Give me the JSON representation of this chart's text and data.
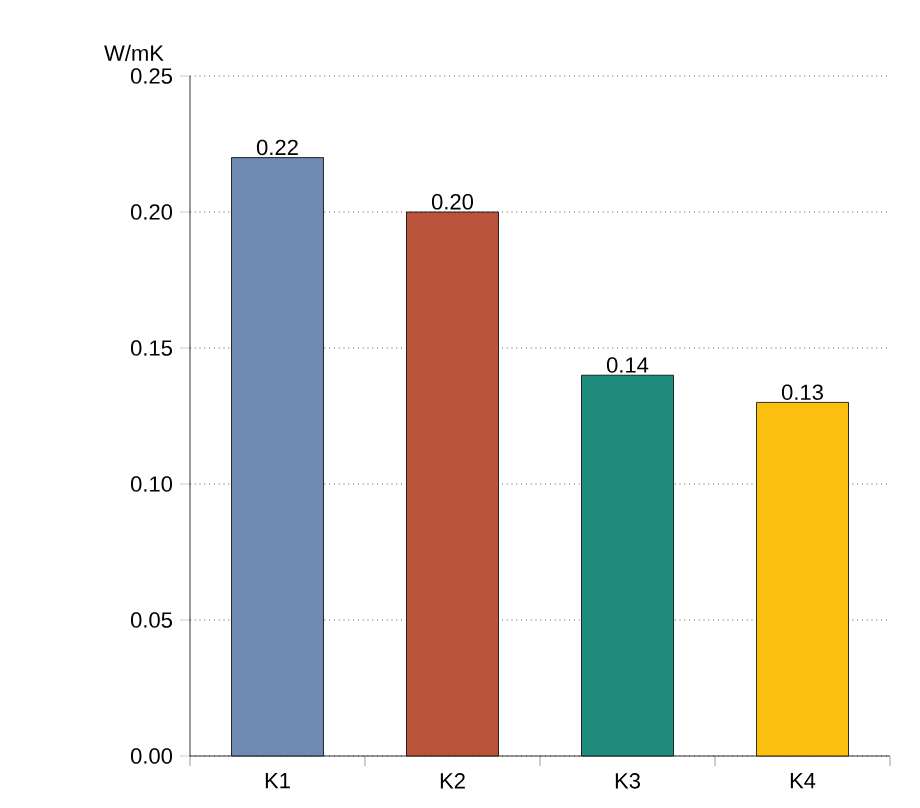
{
  "chart_data": {
    "type": "bar",
    "ylabel": "W/mK",
    "categories": [
      "K1",
      "K2",
      "K3",
      "K4"
    ],
    "values": [
      0.22,
      0.2,
      0.14,
      0.13
    ],
    "value_labels": [
      "0.22",
      "0.20",
      "0.14",
      "0.13"
    ],
    "colors": [
      "#6f8ab3",
      "#b9533a",
      "#1f8c7e",
      "#fbbf10"
    ],
    "ylim": [
      0,
      0.25
    ],
    "yticks": [
      {
        "value": 0,
        "label": "0.00"
      },
      {
        "value": 0.05,
        "label": "0.05"
      },
      {
        "value": 0.1,
        "label": "0.10"
      },
      {
        "value": 0.15,
        "label": "0.15"
      },
      {
        "value": 0.2,
        "label": "0.20"
      },
      {
        "value": 0.25,
        "label": "0.25"
      }
    ],
    "grid": "y"
  }
}
